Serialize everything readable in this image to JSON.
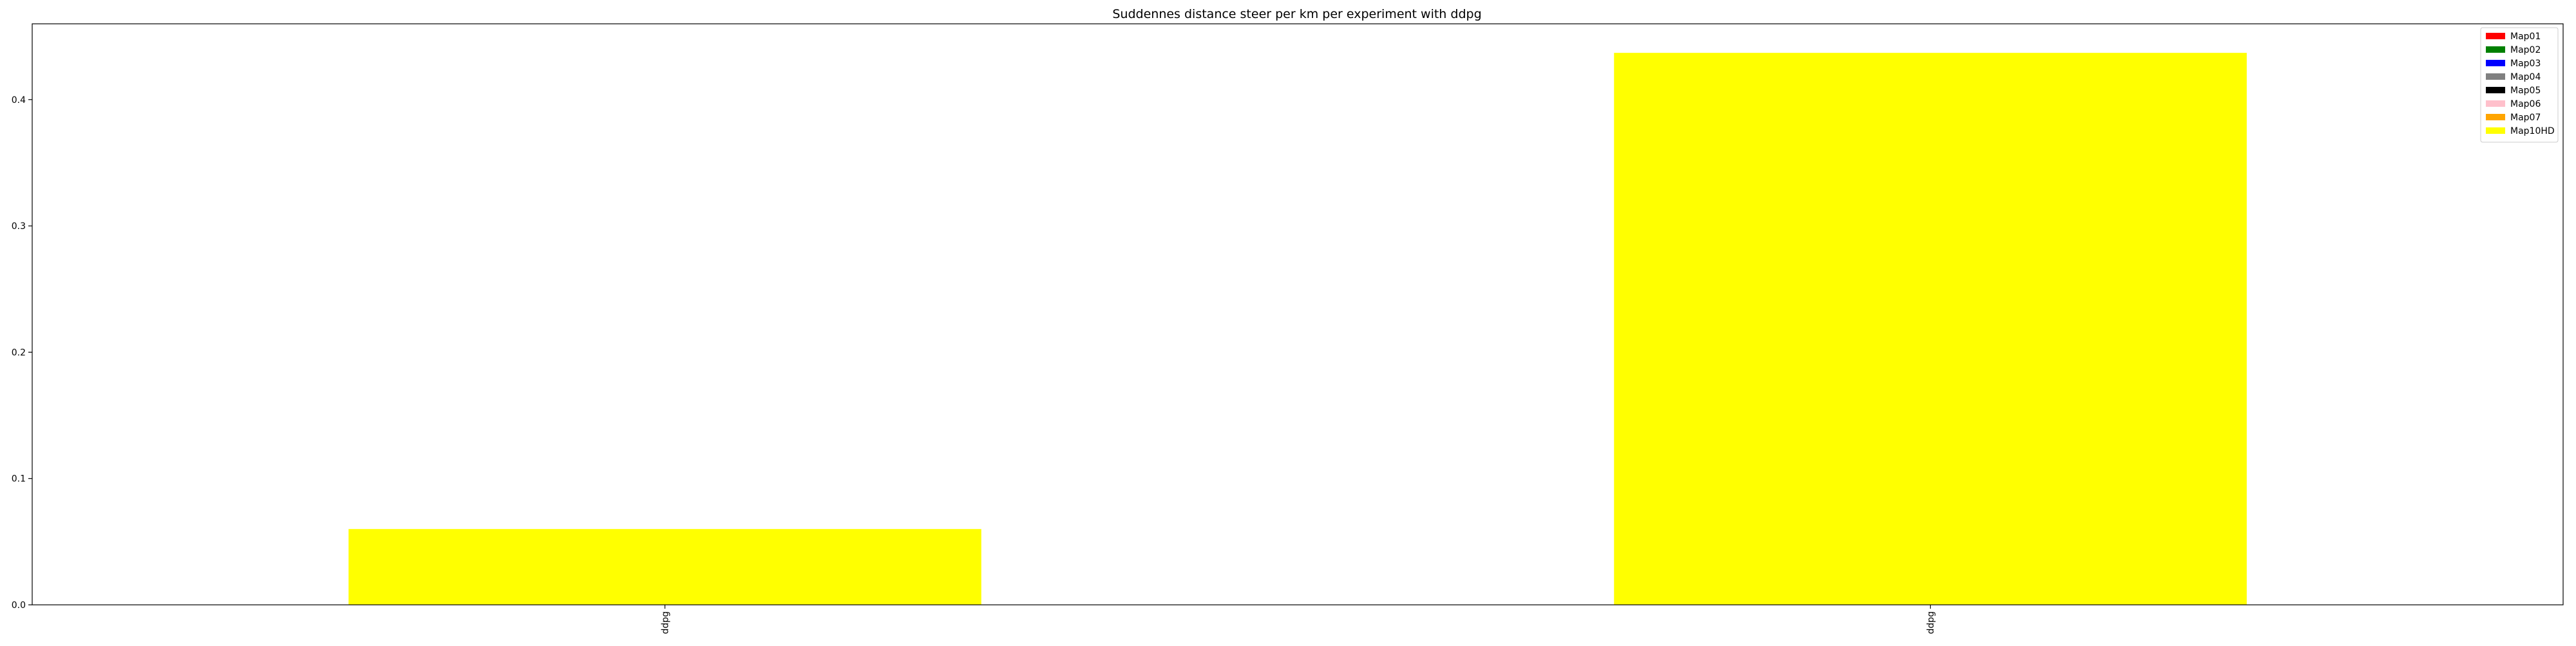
{
  "chart_data": {
    "type": "bar",
    "title": "Suddennes distance steer per km per experiment with ddpg",
    "categories": [
      "ddpg",
      "ddpg"
    ],
    "series": [
      {
        "name": "Map10HD",
        "values": [
          0.06,
          0.437
        ],
        "color": "#ffff00"
      }
    ],
    "legend": {
      "placement": "top-right",
      "entries": [
        {
          "name": "Map01",
          "color": "#ff0000"
        },
        {
          "name": "Map02",
          "color": "#008000"
        },
        {
          "name": "Map03",
          "color": "#0000ff"
        },
        {
          "name": "Map04",
          "color": "#808080"
        },
        {
          "name": "Map05",
          "color": "#000000"
        },
        {
          "name": "Map06",
          "color": "#ffc0cb"
        },
        {
          "name": "Map07",
          "color": "#ffa500"
        },
        {
          "name": "Map10HD",
          "color": "#ffff00"
        }
      ]
    },
    "xlabel": "",
    "ylabel": "",
    "ylim": [
      0,
      0.46
    ],
    "yticks": [
      0.0,
      0.1,
      0.2,
      0.3,
      0.4
    ],
    "ytick_labels": [
      "0.0",
      "0.1",
      "0.2",
      "0.3",
      "0.4"
    ],
    "grid": false
  }
}
